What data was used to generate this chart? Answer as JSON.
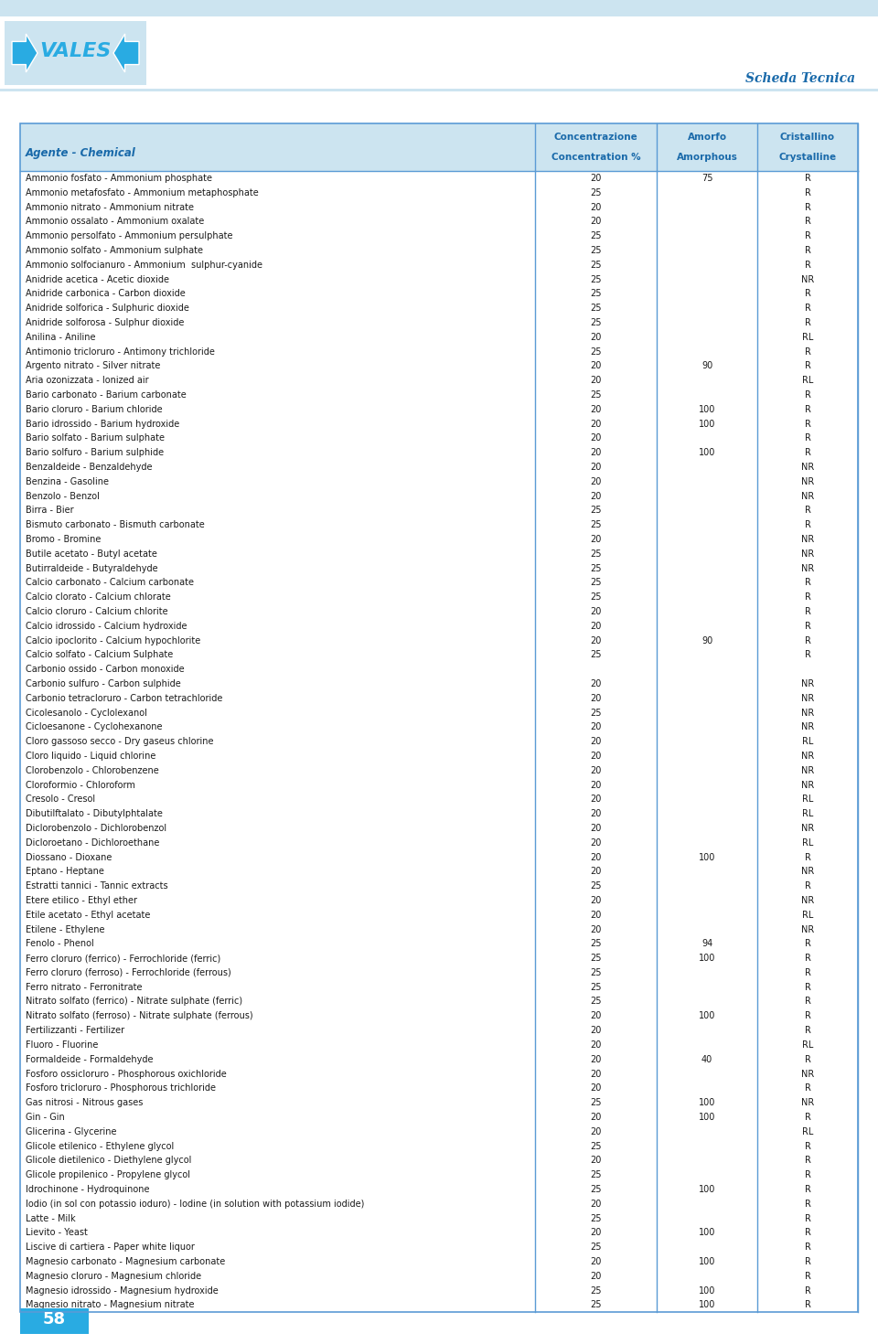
{
  "title_right": "Scheda Tecnica",
  "header_col1": "Agente - Chemical",
  "header_col2_line1": "Concentrazione",
  "header_col2_line2": "Concentration %",
  "header_col3_line1": "Amorfo",
  "header_col3_line2": "Amorphous",
  "header_col4_line1": "Cristallino",
  "header_col4_line2": "Crystalline",
  "rows": [
    [
      "Ammonio fosfato - Ammonium phosphate",
      "20",
      "75",
      "R"
    ],
    [
      "Ammonio metafosfato - Ammonium metaphosphate",
      "25",
      "",
      "R"
    ],
    [
      "Ammonio nitrato - Ammonium nitrate",
      "20",
      "",
      "R"
    ],
    [
      "Ammonio ossalato - Ammonium oxalate",
      "20",
      "",
      "R"
    ],
    [
      "Ammonio persolfato - Ammonium persulphate",
      "25",
      "",
      "R"
    ],
    [
      "Ammonio solfato - Ammonium sulphate",
      "25",
      "",
      "R"
    ],
    [
      "Ammonio solfocianuro - Ammonium  sulphur-cyanide",
      "25",
      "",
      "R"
    ],
    [
      "Anidride acetica - Acetic dioxide",
      "25",
      "",
      "NR"
    ],
    [
      "Anidride carbonica - Carbon dioxide",
      "25",
      "",
      "R"
    ],
    [
      "Anidride solforica - Sulphuric dioxide",
      "25",
      "",
      "R"
    ],
    [
      "Anidride solforosa - Sulphur dioxide",
      "25",
      "",
      "R"
    ],
    [
      "Anilina - Aniline",
      "20",
      "",
      "RL"
    ],
    [
      "Antimonio tricloruro - Antimony trichloride",
      "25",
      "",
      "R"
    ],
    [
      "Argento nitrato - Silver nitrate",
      "20",
      "90",
      "R"
    ],
    [
      "Aria ozonizzata - Ionized air",
      "20",
      "",
      "RL"
    ],
    [
      "Bario carbonato - Barium carbonate",
      "25",
      "",
      "R"
    ],
    [
      "Bario cloruro - Barium chloride",
      "20",
      "100",
      "R"
    ],
    [
      "Bario idrossido - Barium hydroxide",
      "20",
      "100",
      "R"
    ],
    [
      "Bario solfato - Barium sulphate",
      "20",
      "",
      "R"
    ],
    [
      "Bario solfuro - Barium sulphide",
      "20",
      "100",
      "R"
    ],
    [
      "Benzaldeide - Benzaldehyde",
      "20",
      "",
      "NR"
    ],
    [
      "Benzina - Gasoline",
      "20",
      "",
      "NR"
    ],
    [
      "Benzolo - Benzol",
      "20",
      "",
      "NR"
    ],
    [
      "Birra - Bier",
      "25",
      "",
      "R"
    ],
    [
      "Bismuto carbonato - Bismuth carbonate",
      "25",
      "",
      "R"
    ],
    [
      "Bromo - Bromine",
      "20",
      "",
      "NR"
    ],
    [
      "Butile acetato - Butyl acetate",
      "25",
      "",
      "NR"
    ],
    [
      "Butirraldeide - Butyraldehyde",
      "25",
      "",
      "NR"
    ],
    [
      "Calcio carbonato - Calcium carbonate",
      "25",
      "",
      "R"
    ],
    [
      "Calcio clorato - Calcium chlorate",
      "25",
      "",
      "R"
    ],
    [
      "Calcio cloruro - Calcium chlorite",
      "20",
      "",
      "R"
    ],
    [
      "Calcio idrossido - Calcium hydroxide",
      "20",
      "",
      "R"
    ],
    [
      "Calcio ipoclorito - Calcium hypochlorite",
      "20",
      "90",
      "R"
    ],
    [
      "Calcio solfato - Calcium Sulphate",
      "25",
      "",
      "R"
    ],
    [
      "Carbonio ossido - Carbon monoxide",
      "",
      "",
      ""
    ],
    [
      "Carbonio sulfuro - Carbon sulphide",
      "20",
      "",
      "NR"
    ],
    [
      "Carbonio tetracloruro - Carbon tetrachloride",
      "20",
      "",
      "NR"
    ],
    [
      "Cicolesanolo - Cyclolexanol",
      "25",
      "",
      "NR"
    ],
    [
      "Cicloesanone - Cyclohexanone",
      "20",
      "",
      "NR"
    ],
    [
      "Cloro gassoso secco - Dry gaseus chlorine",
      "20",
      "",
      "RL"
    ],
    [
      "Cloro liquido - Liquid chlorine",
      "20",
      "",
      "NR"
    ],
    [
      "Clorobenzolo - Chlorobenzene",
      "20",
      "",
      "NR"
    ],
    [
      "Cloroformio - Chloroform",
      "20",
      "",
      "NR"
    ],
    [
      "Cresolo - Cresol",
      "20",
      "",
      "RL"
    ],
    [
      "Dibutilftalato - Dibutylphtalate",
      "20",
      "",
      "RL"
    ],
    [
      "Diclorobenzolo - Dichlorobenzol",
      "20",
      "",
      "NR"
    ],
    [
      "Dicloroetano - Dichloroethane",
      "20",
      "",
      "RL"
    ],
    [
      "Diossano - Dioxane",
      "20",
      "100",
      "R"
    ],
    [
      "Eptano - Heptane",
      "20",
      "",
      "NR"
    ],
    [
      "Estratti tannici - Tannic extracts",
      "25",
      "",
      "R"
    ],
    [
      "Etere etilico - Ethyl ether",
      "20",
      "",
      "NR"
    ],
    [
      "Etile acetato - Ethyl acetate",
      "20",
      "",
      "RL"
    ],
    [
      "Etilene - Ethylene",
      "20",
      "",
      "NR"
    ],
    [
      "Fenolo - Phenol",
      "25",
      "94",
      "R"
    ],
    [
      "Ferro cloruro (ferrico) - Ferrochloride (ferric)",
      "25",
      "100",
      "R"
    ],
    [
      "Ferro cloruro (ferroso) - Ferrochloride (ferrous)",
      "25",
      "",
      "R"
    ],
    [
      "Ferro nitrato - Ferronitrate",
      "25",
      "",
      "R"
    ],
    [
      "Nitrato solfato (ferrico) - Nitrate sulphate (ferric)",
      "25",
      "",
      "R"
    ],
    [
      "Nitrato solfato (ferroso) - Nitrate sulphate (ferrous)",
      "20",
      "100",
      "R"
    ],
    [
      "Fertilizzanti - Fertilizer",
      "20",
      "",
      "R"
    ],
    [
      "Fluoro - Fluorine",
      "20",
      "",
      "RL"
    ],
    [
      "Formaldeide - Formaldehyde",
      "20",
      "40",
      "R"
    ],
    [
      "Fosforo ossicloruro - Phosphorous oxichloride",
      "20",
      "",
      "NR"
    ],
    [
      "Fosforo tricloruro - Phosphorous trichloride",
      "20",
      "",
      "R"
    ],
    [
      "Gas nitrosi - Nitrous gases",
      "25",
      "100",
      "NR"
    ],
    [
      "Gin - Gin",
      "20",
      "100",
      "R"
    ],
    [
      "Glicerina - Glycerine",
      "20",
      "",
      "RL"
    ],
    [
      "Glicole etilenico - Ethylene glycol",
      "25",
      "",
      "R"
    ],
    [
      "Glicole dietilenico - Diethylene glycol",
      "20",
      "",
      "R"
    ],
    [
      "Glicole propilenico - Propylene glycol",
      "25",
      "",
      "R"
    ],
    [
      "Idrochinone - Hydroquinone",
      "25",
      "100",
      "R"
    ],
    [
      "Iodio (in sol con potassio ioduro) - Iodine (in solution with potassium iodide)",
      "20",
      "",
      "R"
    ],
    [
      "Latte - Milk",
      "25",
      "",
      "R"
    ],
    [
      "Lievito - Yeast",
      "20",
      "100",
      "R"
    ],
    [
      "Liscive di cartiera - Paper white liquor",
      "25",
      "",
      "R"
    ],
    [
      "Magnesio carbonato - Magnesium carbonate",
      "20",
      "100",
      "R"
    ],
    [
      "Magnesio cloruro - Magnesium chloride",
      "20",
      "",
      "R"
    ],
    [
      "Magnesio idrossido - Magnesium hydroxide",
      "25",
      "100",
      "R"
    ],
    [
      "Magnesio nitrato - Magnesium nitrate",
      "25",
      "100",
      "R"
    ]
  ],
  "bg_color": "#ffffff",
  "header_bg": "#cce4f0",
  "table_border_color": "#5b9bd5",
  "text_color": "#1a1a1a",
  "header_text_color": "#1a6aaa",
  "logo_blue": "#29abe2",
  "logo_bg": "#cce4f0",
  "top_bar_color": "#cce4f0",
  "page_number": "58",
  "page_num_bg": "#29abe2"
}
